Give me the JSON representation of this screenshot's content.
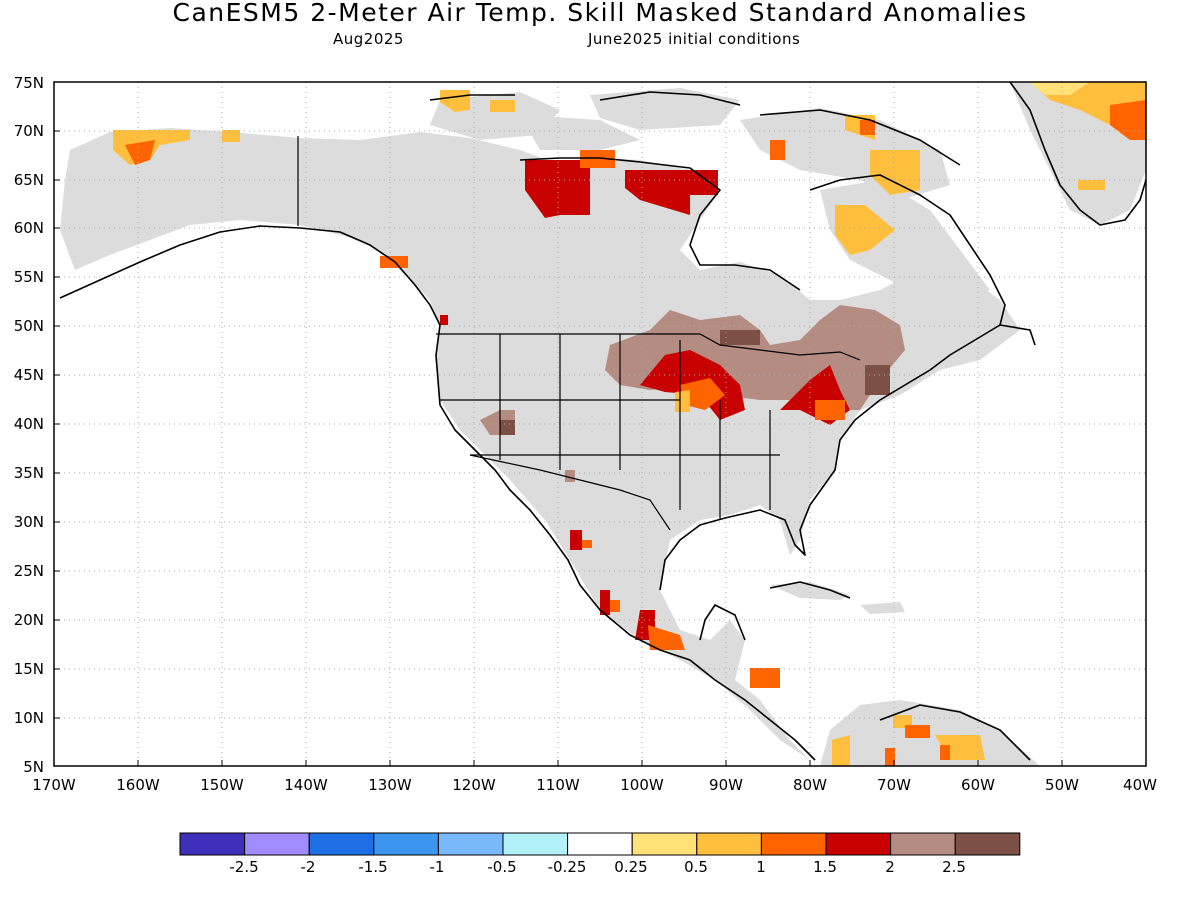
{
  "header": {
    "title": "CanESM5 2-Meter Air Temp. Skill Masked Standard Anomalies",
    "valid_month": "Aug2025",
    "init": "June2025 initial conditions"
  },
  "map": {
    "lon_range": [
      -170,
      -40
    ],
    "lat_range": [
      5,
      75
    ],
    "lat_ticks": [
      "5N",
      "10N",
      "15N",
      "20N",
      "25N",
      "30N",
      "35N",
      "40N",
      "45N",
      "50N",
      "55N",
      "60N",
      "65N",
      "70N",
      "75N"
    ],
    "lon_ticks": [
      "170W",
      "160W",
      "150W",
      "140W",
      "130W",
      "120W",
      "110W",
      "100W",
      "90W",
      "80W",
      "70W",
      "60W",
      "50W",
      "40W"
    ],
    "mask_color": "#dcdcdc"
  },
  "legend": {
    "bins": [
      {
        "color": "#3f2fbd"
      },
      {
        "color": "#a08cff"
      },
      {
        "color": "#1e6ee6"
      },
      {
        "color": "#3c96f0"
      },
      {
        "color": "#78b9fa"
      },
      {
        "color": "#b4f0fa"
      },
      {
        "color": "#ffffff"
      },
      {
        "color": "#ffe178"
      },
      {
        "color": "#ffbe3c"
      },
      {
        "color": "#ff6400"
      },
      {
        "color": "#c80000"
      },
      {
        "color": "#b48c82"
      },
      {
        "color": "#7d5046"
      }
    ],
    "labels": [
      "-2.5",
      "-2",
      "-1.5",
      "-1",
      "-0.5",
      "-0.25",
      "0.25",
      "0.5",
      "1",
      "1.5",
      "2",
      "2.5"
    ]
  }
}
